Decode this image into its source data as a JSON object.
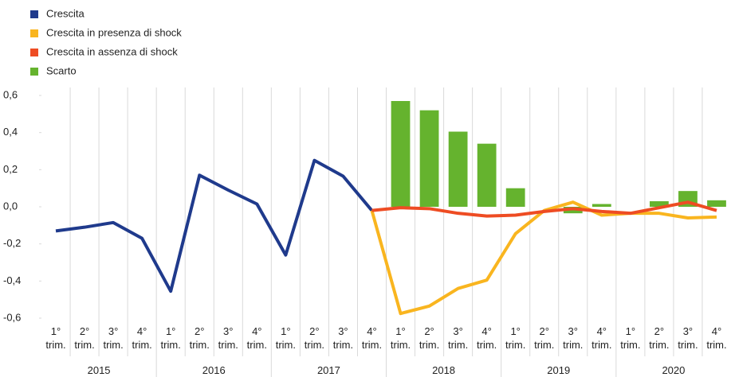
{
  "chart_data": {
    "type": "line",
    "categories": [
      "1° trim.",
      "2° trim.",
      "3° trim.",
      "4° trim.",
      "1° trim.",
      "2° trim.",
      "3° trim.",
      "4° trim.",
      "1° trim.",
      "2° trim.",
      "3° trim.",
      "4° trim.",
      "1° trim.",
      "2° trim.",
      "3° trim.",
      "4° trim.",
      "1° trim.",
      "2° trim.",
      "3° trim.",
      "4° trim.",
      "1° trim.",
      "2° trim.",
      "3° trim.",
      "4° trim."
    ],
    "years": [
      "2015",
      "2016",
      "2017",
      "2018",
      "2019",
      "2020"
    ],
    "series": [
      {
        "name": "Crescita",
        "type": "line",
        "color": "#1f3a8c",
        "values": [
          -0.13,
          -0.11,
          -0.085,
          -0.17,
          -0.455,
          0.17,
          0.09,
          0.015,
          -0.26,
          0.25,
          0.165,
          -0.02,
          null,
          null,
          null,
          null,
          null,
          null,
          null,
          null,
          null,
          null,
          null,
          null
        ]
      },
      {
        "name": "Crescita in presenza di shock",
        "type": "line",
        "color": "#f9b51f",
        "values": [
          null,
          null,
          null,
          null,
          null,
          null,
          null,
          null,
          null,
          null,
          null,
          -0.02,
          -0.575,
          -0.535,
          -0.44,
          -0.395,
          -0.145,
          -0.02,
          0.025,
          -0.045,
          -0.035,
          -0.035,
          -0.06,
          -0.055
        ]
      },
      {
        "name": "Crescita in assenza di shock",
        "type": "line",
        "color": "#ee4c23",
        "values": [
          null,
          null,
          null,
          null,
          null,
          null,
          null,
          null,
          null,
          null,
          null,
          -0.02,
          -0.005,
          -0.01,
          -0.035,
          -0.05,
          -0.045,
          -0.025,
          -0.01,
          -0.025,
          -0.035,
          -0.005,
          0.025,
          -0.02
        ]
      },
      {
        "name": "Scarto",
        "type": "bar",
        "color": "#65b32e",
        "values": [
          null,
          null,
          null,
          null,
          null,
          null,
          null,
          null,
          null,
          null,
          null,
          null,
          0.57,
          0.52,
          0.405,
          0.34,
          0.1,
          0.0,
          -0.035,
          0.015,
          0.0,
          0.03,
          0.085,
          0.035
        ]
      }
    ],
    "ylim": [
      -0.6,
      0.6
    ],
    "yticks": [
      {
        "value": 0.6,
        "label": "0,6"
      },
      {
        "value": 0.4,
        "label": "0,4"
      },
      {
        "value": 0.2,
        "label": "0,2"
      },
      {
        "value": 0,
        "label": "0,0"
      },
      {
        "value": -0.2,
        "label": "-0,2"
      },
      {
        "value": -0.4,
        "label": "-0,4"
      },
      {
        "value": -0.6,
        "label": "-0,6"
      }
    ],
    "legend": "top-left"
  }
}
